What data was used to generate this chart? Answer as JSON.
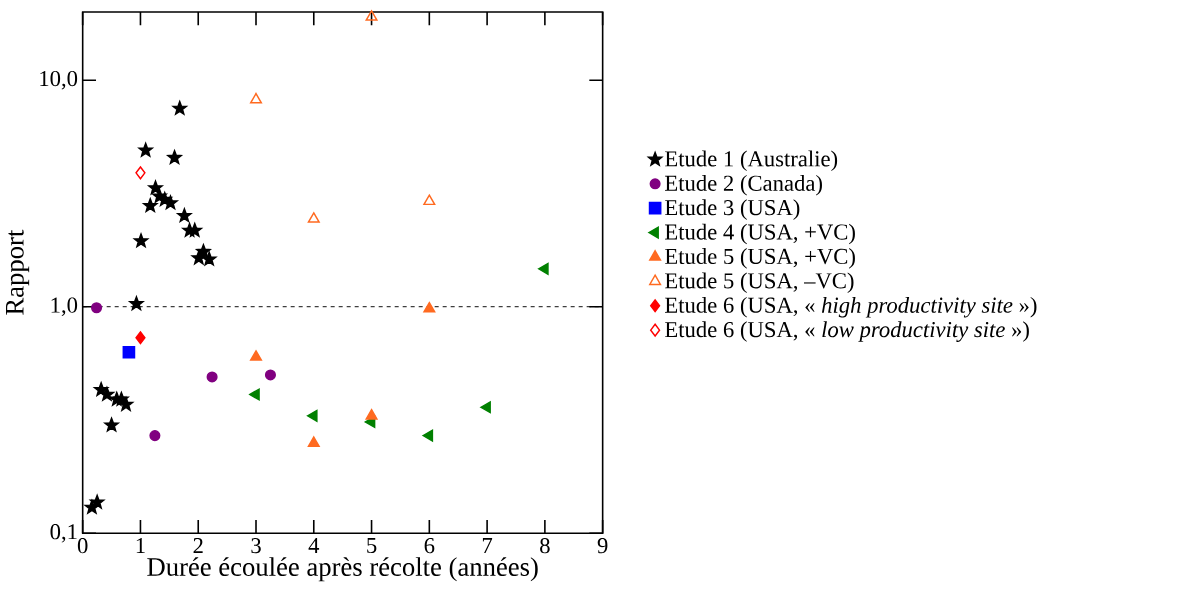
{
  "chart_data": {
    "type": "scatter",
    "xlabel": "Durée écoulée après récolte (années)",
    "ylabel": "Rapport",
    "xlim": [
      0,
      9
    ],
    "xticks": [
      0,
      1,
      2,
      3,
      4,
      5,
      6,
      7,
      8,
      9
    ],
    "ylim": [
      0.1,
      20
    ],
    "yticks": [
      {
        "value": 0.1,
        "label": "0,1"
      },
      {
        "value": 1,
        "label": "1,0"
      },
      {
        "value": 10,
        "label": "10,0"
      }
    ],
    "log": "y",
    "grid": false,
    "legend": "right",
    "ref_lines": [
      {
        "axis": "y",
        "value": 1,
        "line_style": "dashed",
        "color": "#000000"
      }
    ],
    "series": [
      {
        "name": "Etude 1 (Australie)",
        "color": "#000000",
        "marker": "star",
        "x": [
          1.68,
          1.09,
          1.59,
          1.26,
          1.17,
          1.33,
          1.42,
          1.52,
          1.76,
          1.85,
          1.94,
          2.09,
          2.01,
          2.19,
          1.01,
          0.93,
          0.32,
          0.42,
          0.59,
          0.67,
          0.75,
          0.5,
          0.16,
          0.25
        ],
        "values": [
          7.5,
          4.9,
          4.55,
          3.34,
          2.79,
          3.07,
          2.97,
          2.87,
          2.52,
          2.17,
          2.17,
          1.75,
          1.64,
          1.62,
          1.95,
          1.03,
          0.43,
          0.41,
          0.39,
          0.39,
          0.37,
          0.3,
          0.13,
          0.137
        ]
      },
      {
        "name": "Etude 2 (Canada)",
        "color": "#800080",
        "marker": "circle",
        "x": [
          0.24,
          1.25,
          2.24,
          3.25
        ],
        "values": [
          0.99,
          0.27,
          0.49,
          0.5
        ]
      },
      {
        "name": "Etude 3 (USA)",
        "color": "#0000ff",
        "marker": "square",
        "x": [
          0.8
        ],
        "values": [
          0.63
        ]
      },
      {
        "name": "Etude 4 (USA, +VC)",
        "color": "#008000",
        "marker": "triangle-left",
        "x": [
          3,
          4,
          5,
          6,
          7,
          8
        ],
        "values": [
          0.41,
          0.33,
          0.31,
          0.27,
          0.36,
          1.47
        ]
      },
      {
        "name": "Etude 5 (USA, +VC)",
        "color": "#ff6a20",
        "marker": "triangle",
        "x": [
          3,
          4,
          5,
          6
        ],
        "values": [
          0.6,
          0.25,
          0.33,
          0.98
        ]
      },
      {
        "name": "Etude 5 (USA, –VC)",
        "color": "#ff6a20",
        "marker": "triangle-open",
        "x": [
          3,
          4,
          5,
          6
        ],
        "values": [
          8.2,
          2.44,
          19,
          2.92
        ]
      },
      {
        "name": "Etude 6 (USA, « *high productivity site* »)",
        "color": "#ff0000",
        "marker": "diamond",
        "x": [
          1
        ],
        "values": [
          0.73
        ]
      },
      {
        "name": "Etude 6 (USA, « *low productivity site* »)",
        "color": "#ff0000",
        "marker": "diamond-open",
        "x": [
          1
        ],
        "values": [
          3.9
        ]
      }
    ]
  }
}
